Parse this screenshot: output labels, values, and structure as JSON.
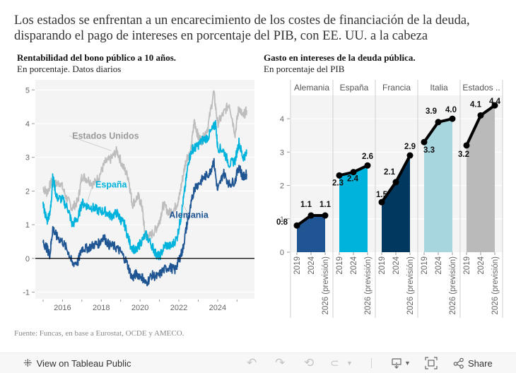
{
  "headline": "Los estados se enfrentan a un encarecimiento de los costes de financiación de la deuda, disparando el pago de intereses en porcentaje del PIB, con EE. UU. a la cabeza",
  "source": "Fuente: Funcas, en base a Eurostat, OCDE y AMECO.",
  "toolbar": {
    "view_label": "View on Tableau Public",
    "share_label": "Share",
    "icons": [
      "tableau-logo-icon",
      "undo-icon",
      "redo-icon",
      "revert-icon",
      "refresh-icon",
      "dropdown-icon",
      "download-icon",
      "fullscreen-icon",
      "share-icon"
    ]
  },
  "chart_data": [
    {
      "type": "line",
      "title": "Rentabilidad del bono público a 10 años.",
      "subtitle": "En porcentaje. Datos diarios",
      "xlabel": "",
      "ylabel": "",
      "x_ticks": [
        "2016",
        "2018",
        "2020",
        "2022",
        "2024"
      ],
      "y_ticks": [
        "-1",
        "0",
        "1",
        "2",
        "3",
        "4",
        "5"
      ],
      "xlim": [
        2014.6,
        2025.9
      ],
      "ylim": [
        -1.2,
        5.3
      ],
      "grid": true,
      "zero_line": true,
      "series": [
        {
          "name": "Estados Unidos",
          "color": "#bdbdbd",
          "label_pos": [
            2016.5,
            3.55
          ],
          "anchor": [
            2018.5,
            3.2
          ],
          "x": [
            2015.0,
            2015.2,
            2015.45,
            2015.6,
            2015.9,
            2016.2,
            2016.5,
            2016.8,
            2017.0,
            2017.3,
            2017.6,
            2017.9,
            2018.2,
            2018.5,
            2018.8,
            2019.1,
            2019.4,
            2019.6,
            2019.9,
            2020.1,
            2020.25,
            2020.5,
            2020.8,
            2021.0,
            2021.2,
            2021.5,
            2021.8,
            2022.0,
            2022.2,
            2022.4,
            2022.6,
            2022.8,
            2023.0,
            2023.2,
            2023.5,
            2023.8,
            2024.0,
            2024.3,
            2024.6,
            2024.9,
            2025.1,
            2025.3,
            2025.5
          ],
          "y": [
            2.1,
            1.95,
            2.3,
            2.2,
            2.25,
            1.8,
            1.5,
            1.7,
            2.45,
            2.35,
            2.2,
            2.45,
            2.85,
            2.95,
            3.2,
            2.75,
            2.4,
            1.6,
            1.85,
            1.55,
            0.75,
            0.65,
            0.85,
            1.1,
            1.6,
            1.35,
            1.5,
            1.75,
            2.4,
            3.0,
            3.1,
            4.1,
            3.6,
            3.5,
            3.9,
            4.95,
            4.0,
            4.3,
            4.6,
            3.7,
            4.5,
            4.2,
            4.4
          ]
        },
        {
          "name": "España",
          "color": "#00b3dc",
          "label_pos": [
            2017.7,
            2.1
          ],
          "anchor": [
            2017.3,
            1.7
          ],
          "x": [
            2015.0,
            2015.2,
            2015.4,
            2015.5,
            2015.7,
            2016.0,
            2016.3,
            2016.5,
            2016.8,
            2017.0,
            2017.3,
            2017.6,
            2017.9,
            2018.2,
            2018.5,
            2018.8,
            2019.0,
            2019.2,
            2019.5,
            2019.8,
            2020.0,
            2020.3,
            2020.6,
            2020.8,
            2021.0,
            2021.3,
            2021.6,
            2021.9,
            2022.1,
            2022.3,
            2022.5,
            2022.7,
            2022.9,
            2023.2,
            2023.5,
            2023.8,
            2023.9,
            2024.0,
            2024.3,
            2024.6,
            2024.9,
            2025.1,
            2025.3,
            2025.5
          ],
          "y": [
            1.6,
            1.1,
            1.5,
            2.45,
            1.8,
            1.75,
            1.45,
            1.0,
            1.2,
            1.65,
            1.55,
            1.5,
            1.4,
            1.4,
            1.25,
            1.35,
            1.15,
            1.0,
            0.4,
            0.2,
            0.45,
            0.7,
            0.4,
            0.15,
            0.05,
            0.4,
            0.35,
            0.6,
            1.2,
            2.0,
            2.9,
            3.25,
            3.3,
            3.5,
            3.6,
            3.9,
            4.0,
            3.3,
            3.2,
            2.8,
            2.9,
            3.45,
            3.0,
            3.1
          ]
        },
        {
          "name": "Alemania",
          "color": "#1f5592",
          "label_pos": [
            2021.5,
            1.2
          ],
          "anchor": [
            2022.2,
            1.6
          ],
          "x": [
            2015.0,
            2015.2,
            2015.35,
            2015.5,
            2015.7,
            2016.0,
            2016.3,
            2016.5,
            2016.8,
            2017.0,
            2017.3,
            2017.6,
            2017.9,
            2018.1,
            2018.4,
            2018.7,
            2019.0,
            2019.3,
            2019.6,
            2019.8,
            2020.1,
            2020.3,
            2020.6,
            2020.9,
            2021.2,
            2021.5,
            2021.8,
            2022.0,
            2022.2,
            2022.4,
            2022.6,
            2022.8,
            2023.0,
            2023.3,
            2023.6,
            2023.8,
            2024.0,
            2024.3,
            2024.6,
            2024.9,
            2025.1,
            2025.3,
            2025.5
          ],
          "y": [
            0.5,
            0.3,
            0.1,
            0.9,
            0.65,
            0.5,
            0.2,
            -0.15,
            -0.1,
            0.3,
            0.3,
            0.4,
            0.45,
            0.65,
            0.4,
            0.35,
            0.2,
            -0.1,
            -0.6,
            -0.45,
            -0.55,
            -0.75,
            -0.5,
            -0.55,
            -0.35,
            -0.25,
            -0.35,
            -0.05,
            0.25,
            0.95,
            1.5,
            2.1,
            2.2,
            2.4,
            2.55,
            2.9,
            2.0,
            2.55,
            2.2,
            2.3,
            2.75,
            2.4,
            2.5
          ]
        }
      ]
    },
    {
      "type": "area",
      "title": "Gasto en intereses de la deuda pública.",
      "subtitle": "En porcentaje del PIB",
      "categories": [
        "2019",
        "2024",
        "2026 (previsión)"
      ],
      "ylim": [
        0,
        4.7
      ],
      "y_ticks": [
        "0",
        "1",
        "2",
        "3",
        "4"
      ],
      "grid": true,
      "panels": [
        {
          "name": "Alemania",
          "header": "Alemania",
          "color": "#1f5592",
          "values": [
            0.8,
            1.1,
            1.1
          ]
        },
        {
          "name": "España",
          "header": "España",
          "color": "#00b3dc",
          "values": [
            2.3,
            2.4,
            2.6
          ]
        },
        {
          "name": "Francia",
          "header": "Francia",
          "color": "#01385f",
          "values": [
            1.5,
            2.1,
            2.9
          ]
        },
        {
          "name": "Italia",
          "header": "Italia",
          "color": "#a8d6df",
          "values": [
            3.3,
            3.9,
            4.0
          ]
        },
        {
          "name": "Estados Unidos",
          "header": "Estados ..",
          "color": "#bababa",
          "values": [
            3.2,
            4.1,
            4.4
          ]
        }
      ]
    }
  ]
}
